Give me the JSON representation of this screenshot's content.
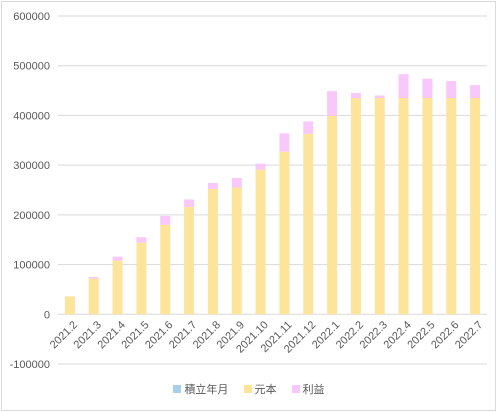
{
  "chart_data": {
    "type": "bar",
    "stacked": true,
    "categories": [
      "2021.2",
      "2021.3",
      "2021.4",
      "2021.5",
      "2021.6",
      "2021.7",
      "2021.8",
      "2021.9",
      "2021.10",
      "2021.11",
      "2021.12",
      "2022.1",
      "2022.2",
      "2022.3",
      "2022.4",
      "2022.5",
      "2022.6",
      "2022.7"
    ],
    "series": [
      {
        "name": "積立年月",
        "color": "#a9d0ea",
        "values": [
          0,
          0,
          0,
          0,
          0,
          0,
          0,
          0,
          0,
          0,
          0,
          0,
          0,
          0,
          0,
          0,
          0,
          0
        ]
      },
      {
        "name": "元本",
        "color": "#fde49b",
        "values": [
          36000,
          72000,
          108000,
          144000,
          180000,
          216000,
          252000,
          255000,
          291000,
          327000,
          363000,
          399000,
          435000,
          435000,
          435000,
          435000,
          435000,
          435000
        ]
      },
      {
        "name": "利益",
        "color": "#f9c8fa",
        "values": [
          0,
          3000,
          8000,
          11000,
          18000,
          15000,
          12000,
          19000,
          12000,
          37000,
          25000,
          50000,
          10000,
          5000,
          48000,
          39000,
          34000,
          26000
        ]
      }
    ],
    "ylim": [
      -100000,
      600000
    ],
    "yticks": [
      "600000",
      "500000",
      "400000",
      "300000",
      "200000",
      "100000",
      "0",
      "-100000"
    ],
    "grid": true,
    "legend": "bottom",
    "title": "",
    "xlabel": "",
    "ylabel": ""
  }
}
